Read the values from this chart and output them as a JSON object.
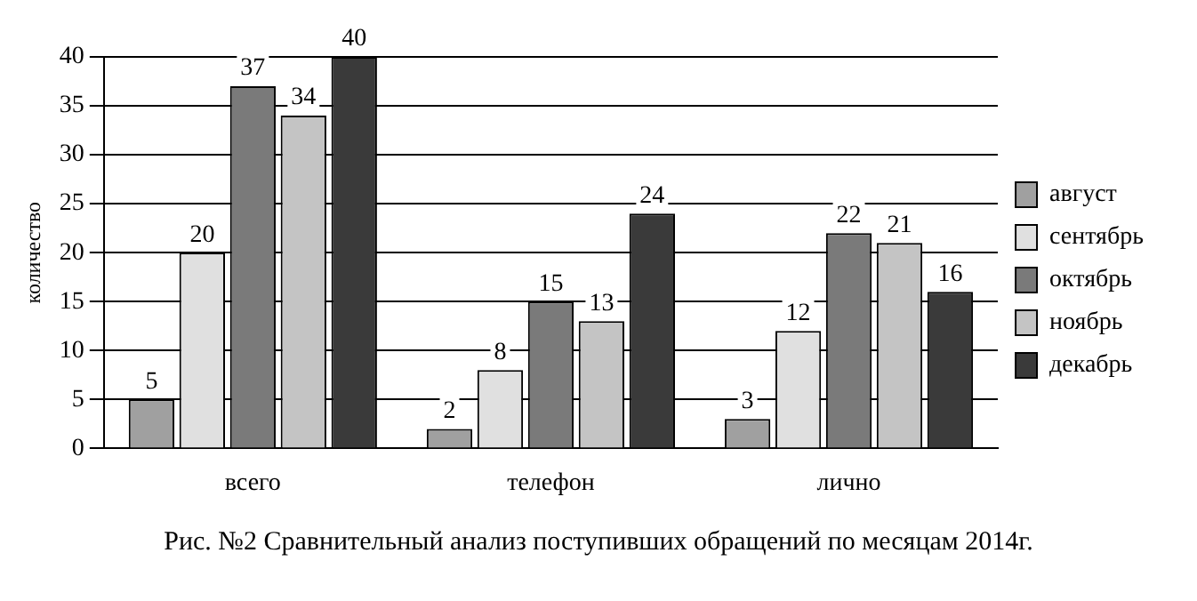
{
  "chart_data": {
    "type": "bar",
    "ylabel": "количество",
    "categories": [
      "всего",
      "телефон",
      "лично"
    ],
    "series": [
      {
        "name": "август",
        "color": "#a0a0a0",
        "values": [
          5,
          2,
          3
        ]
      },
      {
        "name": "сентябрь",
        "color": "#e0e0e0",
        "values": [
          20,
          8,
          12
        ]
      },
      {
        "name": "октябрь",
        "color": "#7a7a7a",
        "values": [
          37,
          15,
          22
        ]
      },
      {
        "name": "ноябрь",
        "color": "#c4c4c4",
        "values": [
          34,
          13,
          21
        ]
      },
      {
        "name": "декабрь",
        "color": "#3a3a3a",
        "values": [
          40,
          24,
          16
        ]
      }
    ],
    "ylim": [
      0,
      40
    ],
    "yticks": [
      0,
      5,
      10,
      15,
      20,
      25,
      30,
      35,
      40
    ],
    "grid": "y",
    "legend": "right",
    "data_labels": true,
    "annotations": [
      "Рис. №2 Сравнительный анализ поступивших обращений по месяцам 2014г."
    ]
  }
}
